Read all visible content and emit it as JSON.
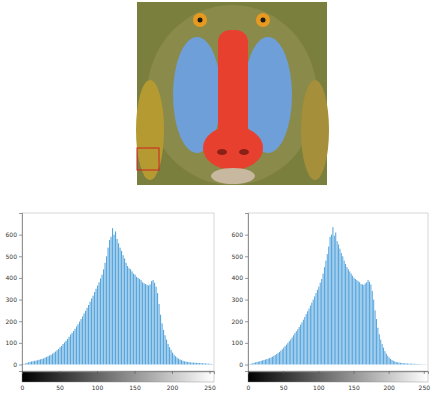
{
  "chart_data": [
    {
      "type": "histogram",
      "color": "#5aa7de",
      "bins": [
        0,
        2,
        4,
        6,
        8,
        10,
        12,
        14,
        16,
        18,
        20,
        22,
        24,
        26,
        28,
        30,
        32,
        34,
        36,
        38,
        40,
        42,
        44,
        46,
        48,
        50,
        52,
        54,
        56,
        58,
        60,
        62,
        64,
        66,
        68,
        70,
        72,
        74,
        76,
        78,
        80,
        82,
        84,
        86,
        88,
        90,
        92,
        94,
        96,
        98,
        100,
        102,
        104,
        106,
        108,
        110,
        112,
        114,
        116,
        118,
        120,
        122,
        124,
        126,
        128,
        130,
        132,
        134,
        136,
        138,
        140,
        142,
        144,
        146,
        148,
        150,
        152,
        154,
        156,
        158,
        160,
        162,
        164,
        166,
        168,
        170,
        172,
        174,
        176,
        178,
        180,
        182,
        184,
        186,
        188,
        190,
        192,
        194,
        196,
        198,
        200,
        202,
        204,
        206,
        208,
        210,
        212,
        214,
        216,
        218,
        220,
        222,
        224,
        226,
        228,
        230,
        232,
        234,
        236,
        238,
        240,
        242,
        244,
        246,
        248,
        250,
        252,
        254,
        256
      ],
      "counts": [
        2,
        3,
        5,
        8,
        10,
        12,
        14,
        15,
        17,
        18,
        20,
        22,
        24,
        26,
        28,
        32,
        35,
        38,
        42,
        45,
        50,
        55,
        60,
        66,
        72,
        80,
        86,
        95,
        102,
        110,
        118,
        128,
        138,
        146,
        155,
        165,
        176,
        186,
        198,
        210,
        222,
        236,
        248,
        262,
        275,
        290,
        305,
        318,
        335,
        350,
        365,
        380,
        398,
        415,
        440,
        470,
        500,
        540,
        575,
        590,
        630,
        600,
        615,
        580,
        560,
        540,
        525,
        505,
        490,
        470,
        455,
        445,
        440,
        430,
        420,
        415,
        405,
        400,
        395,
        390,
        380,
        375,
        372,
        368,
        365,
        370,
        385,
        390,
        378,
        360,
        330,
        280,
        230,
        190,
        160,
        135,
        115,
        95,
        80,
        68,
        55,
        45,
        38,
        32,
        27,
        23,
        20,
        17,
        15,
        13,
        12,
        11,
        10,
        9,
        9,
        8,
        8,
        7,
        7,
        6,
        6,
        5,
        5,
        4,
        4,
        3,
        2,
        1
      ],
      "xlim": [
        0,
        256
      ],
      "ylim": [
        -30,
        700
      ],
      "xticks": [
        0,
        50,
        100,
        150,
        200,
        250
      ],
      "yticks": [
        0,
        100,
        200,
        300,
        400,
        500,
        600
      ]
    },
    {
      "type": "histogram",
      "color": "#5aa7de",
      "bins": [
        0,
        2,
        4,
        6,
        8,
        10,
        12,
        14,
        16,
        18,
        20,
        22,
        24,
        26,
        28,
        30,
        32,
        34,
        36,
        38,
        40,
        42,
        44,
        46,
        48,
        50,
        52,
        54,
        56,
        58,
        60,
        62,
        64,
        66,
        68,
        70,
        72,
        74,
        76,
        78,
        80,
        82,
        84,
        86,
        88,
        90,
        92,
        94,
        96,
        98,
        100,
        102,
        104,
        106,
        108,
        110,
        112,
        114,
        116,
        118,
        120,
        122,
        124,
        126,
        128,
        130,
        132,
        134,
        136,
        138,
        140,
        142,
        144,
        146,
        148,
        150,
        152,
        154,
        156,
        158,
        160,
        162,
        164,
        166,
        168,
        170,
        172,
        174,
        176,
        178,
        180,
        182,
        184,
        186,
        188,
        190,
        192,
        194,
        196,
        198,
        200,
        202,
        204,
        206,
        208,
        210,
        212,
        214,
        216,
        218,
        220,
        222,
        224,
        226,
        228,
        230,
        232,
        234,
        236,
        238,
        240,
        242,
        244,
        246,
        248,
        250,
        252,
        254,
        256
      ],
      "counts": [
        1,
        2,
        4,
        6,
        8,
        10,
        12,
        13,
        15,
        17,
        19,
        21,
        23,
        25,
        27,
        30,
        33,
        36,
        40,
        44,
        48,
        53,
        58,
        64,
        70,
        78,
        85,
        92,
        100,
        108,
        116,
        125,
        135,
        145,
        154,
        163,
        173,
        184,
        195,
        207,
        220,
        233,
        246,
        258,
        272,
        286,
        300,
        315,
        330,
        345,
        360,
        378,
        395,
        420,
        450,
        480,
        510,
        545,
        590,
        600,
        635,
        595,
        610,
        570,
        555,
        535,
        515,
        500,
        480,
        465,
        450,
        440,
        430,
        420,
        410,
        400,
        395,
        390,
        385,
        380,
        372,
        370,
        368,
        375,
        380,
        390,
        382,
        370,
        340,
        300,
        250,
        210,
        170,
        140,
        115,
        95,
        78,
        62,
        50,
        40,
        32,
        26,
        21,
        17,
        14,
        12,
        10,
        9,
        8,
        7,
        6,
        6,
        5,
        5,
        4,
        4,
        4,
        3,
        3,
        3,
        2,
        2,
        2,
        1,
        1,
        1,
        1,
        0
      ],
      "xlim": [
        0,
        256
      ],
      "ylim": [
        -30,
        700
      ],
      "xticks": [
        0,
        50,
        100,
        150,
        200,
        250
      ],
      "yticks": [
        0,
        100,
        200,
        300,
        400,
        500,
        600
      ]
    }
  ]
}
